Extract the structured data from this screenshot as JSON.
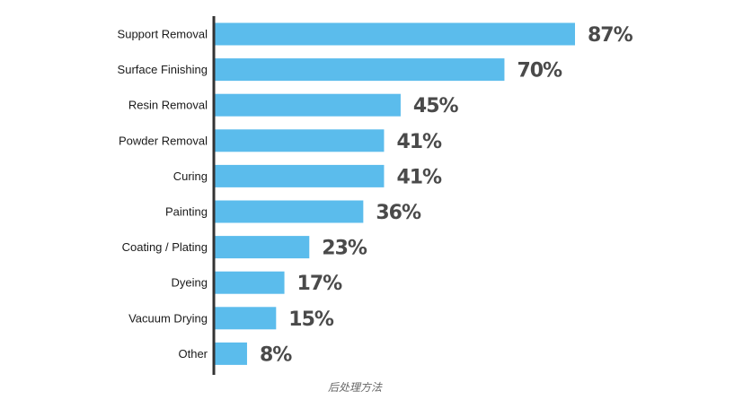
{
  "chart_data": {
    "type": "bar",
    "orientation": "horizontal",
    "categories": [
      "Support Removal",
      "Surface Finishing",
      "Resin Removal",
      "Powder Removal",
      "Curing",
      "Painting",
      "Coating / Plating",
      "Dyeing",
      "Vacuum Drying",
      "Other"
    ],
    "values": [
      87,
      70,
      45,
      41,
      41,
      36,
      23,
      17,
      15,
      8
    ],
    "value_labels": [
      "87%",
      "70%",
      "45%",
      "41%",
      "41%",
      "36%",
      "23%",
      "17%",
      "15%",
      "8%"
    ],
    "title": "",
    "xlabel": "",
    "ylabel": "",
    "xlim": [
      0,
      87
    ],
    "grid": false,
    "legend": "none",
    "caption": "后处理方法",
    "colors": {
      "bar": "#5bbcec",
      "axis": "#333333",
      "value_label": "#4a4a4a",
      "category_label": "#1a1a1a",
      "caption": "#666666"
    }
  }
}
